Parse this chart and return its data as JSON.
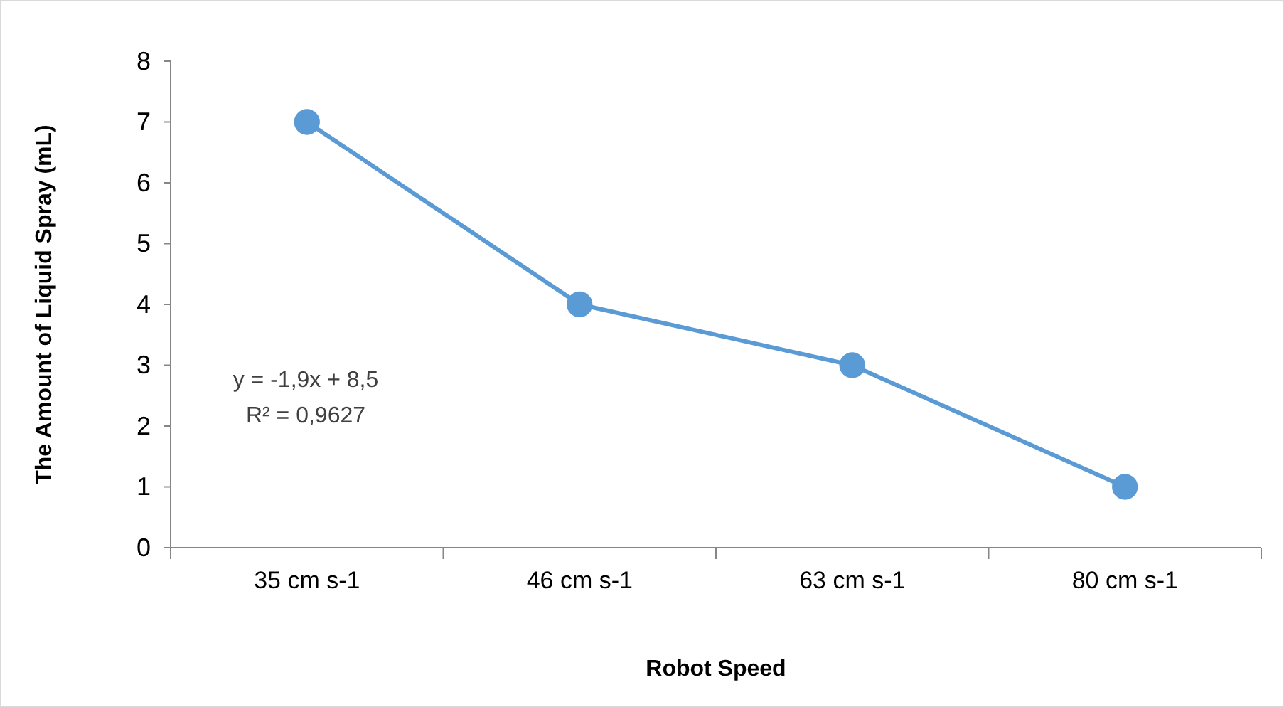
{
  "chart_data": {
    "type": "line",
    "xlabel": "Robot Speed",
    "ylabel": "The Amount of Liquid Spray (mL)",
    "categories": [
      "35 cm s-1",
      "46 cm s-1",
      "63 cm s-1",
      "80 cm s-1"
    ],
    "series": [
      {
        "color": "#5b9bd5",
        "values": [
          7,
          4,
          3,
          1
        ]
      }
    ],
    "ylim": [
      0,
      8
    ],
    "yticks": [
      0,
      1,
      2,
      3,
      4,
      5,
      6,
      7,
      8
    ],
    "grid": false,
    "marker": "circle",
    "line_style": "solid",
    "annotations": [
      "y = -1,9x + 8,5",
      "R² = 0,9627"
    ]
  }
}
